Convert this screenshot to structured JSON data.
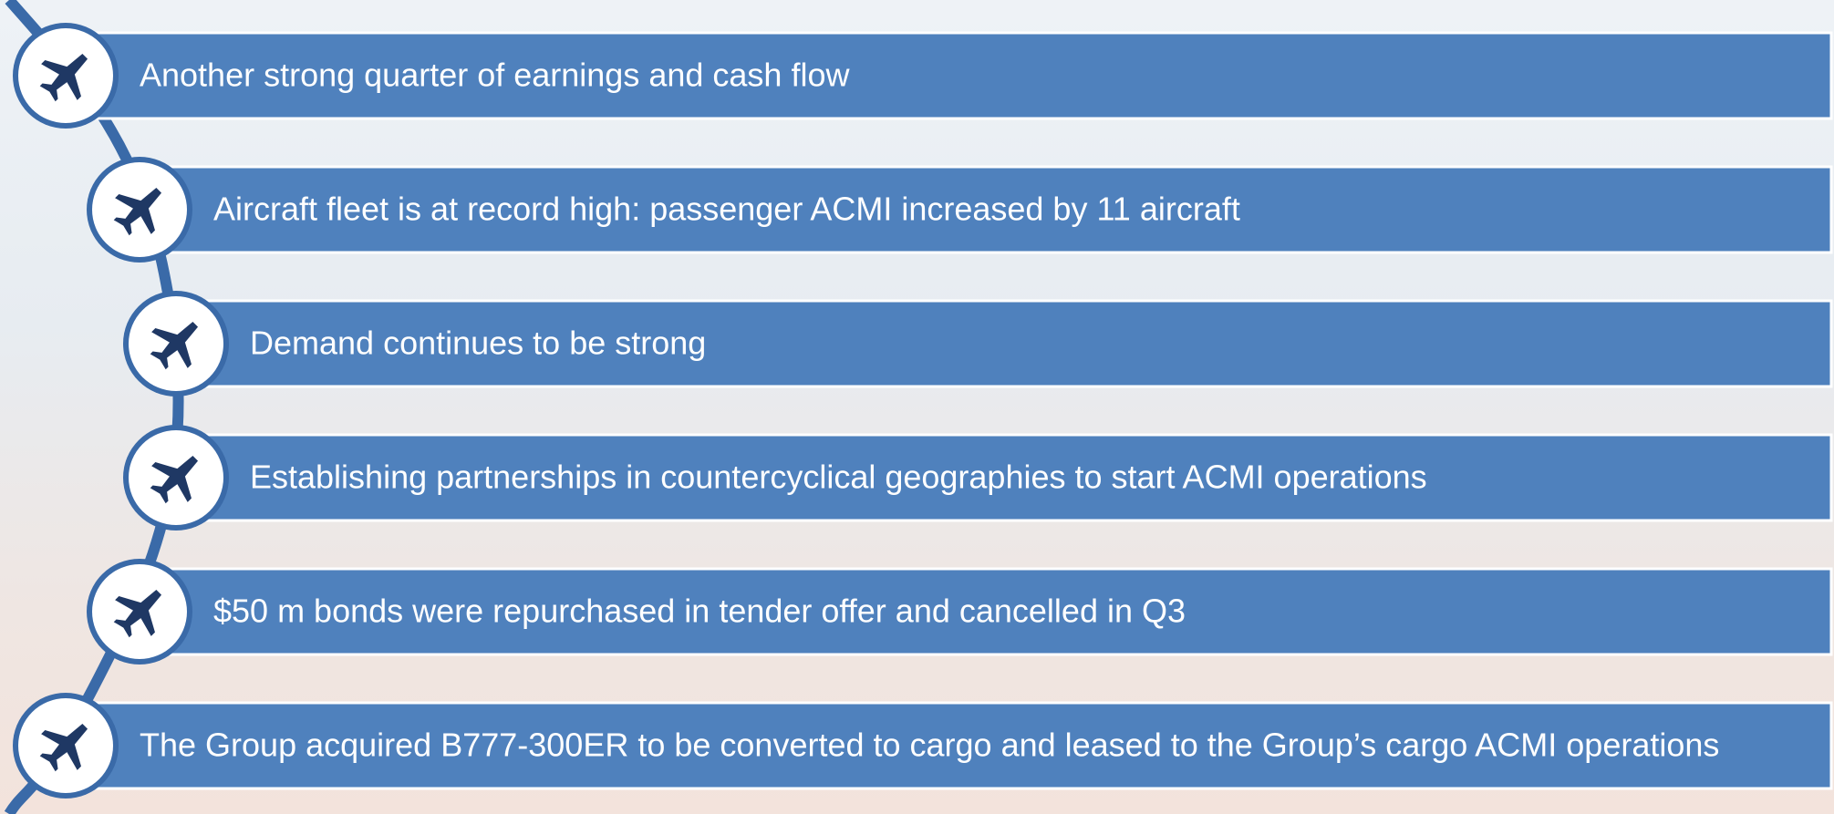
{
  "items": [
    {
      "text": "Another strong quarter of earnings and cash flow"
    },
    {
      "text": "Aircraft fleet is at record high: passenger ACMI increased by 11 aircraft"
    },
    {
      "text": "Demand continues to be strong"
    },
    {
      "text": "Establishing partnerships in countercyclical geographies to start ACMI operations"
    },
    {
      "text": "$50 m bonds were repurchased in tender offer and cancelled in Q3"
    },
    {
      "text": "The Group acquired B777-300ER to be converted to cargo and leased to the Group’s cargo ACMI operations"
    }
  ]
}
